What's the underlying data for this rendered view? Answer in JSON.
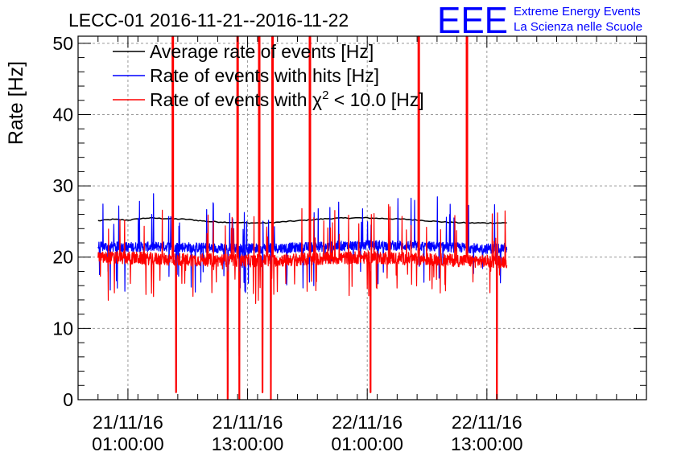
{
  "logo": {
    "mark": "EEE",
    "line1": "Extreme Energy Events",
    "line2": "La Scienza nelle Scuole",
    "color": "#0000ff"
  },
  "chart_data": {
    "type": "line",
    "title": "LECC-01 2016-11-21--2016-11-22",
    "ylabel": "Rate [Hz]",
    "xlabel": "",
    "ylim": [
      0,
      51
    ],
    "yticks": [
      0,
      10,
      20,
      30,
      40,
      50
    ],
    "xlim": [
      "2016-11-20T20:00:00",
      "2016-11-23T05:00:00"
    ],
    "xticks": [
      {
        "at": "2016-11-21T01:00:00",
        "line1": "21/11/16",
        "line2": "01:00:00"
      },
      {
        "at": "2016-11-21T13:00:00",
        "line1": "21/11/16",
        "line2": "13:00:00"
      },
      {
        "at": "2016-11-22T01:00:00",
        "line1": "22/11/16",
        "line2": "01:00:00"
      },
      {
        "at": "2016-11-22T13:00:00",
        "line1": "22/11/16",
        "line2": "13:00:00"
      }
    ],
    "grid": true,
    "legend_position": "top-left",
    "series": [
      {
        "name": "Average rate of events [Hz]",
        "color": "#000000",
        "baseline": [
          [
            "2016-11-20T22:00:00",
            25.1
          ],
          [
            "2016-11-20T23:30:00",
            25.3
          ],
          [
            "2016-11-21T01:00:00",
            25.2
          ],
          [
            "2016-11-21T03:00:00",
            25.5
          ],
          [
            "2016-11-21T05:00:00",
            25.4
          ],
          [
            "2016-11-21T07:00:00",
            25.3
          ],
          [
            "2016-11-21T09:00:00",
            25.0
          ],
          [
            "2016-11-21T11:00:00",
            24.9
          ],
          [
            "2016-11-21T13:00:00",
            24.8
          ],
          [
            "2016-11-21T15:00:00",
            24.8
          ],
          [
            "2016-11-21T17:00:00",
            25.0
          ],
          [
            "2016-11-21T19:00:00",
            25.2
          ],
          [
            "2016-11-21T21:00:00",
            25.4
          ],
          [
            "2016-11-21T23:00:00",
            25.5
          ],
          [
            "2016-11-22T01:00:00",
            25.5
          ],
          [
            "2016-11-22T03:00:00",
            25.4
          ],
          [
            "2016-11-22T05:00:00",
            25.3
          ],
          [
            "2016-11-22T07:00:00",
            25.1
          ],
          [
            "2016-11-22T09:00:00",
            24.9
          ],
          [
            "2016-11-22T11:00:00",
            24.8
          ],
          [
            "2016-11-22T13:00:00",
            24.8
          ],
          [
            "2016-11-22T15:00:00",
            24.8
          ]
        ]
      },
      {
        "name": "Rate of events with hits [Hz]",
        "color": "#0000ff",
        "baseline": [
          [
            "2016-11-20T22:00:00",
            21.5
          ],
          [
            "2016-11-21T01:00:00",
            21.4
          ],
          [
            "2016-11-21T05:00:00",
            21.5
          ],
          [
            "2016-11-21T09:00:00",
            21.3
          ],
          [
            "2016-11-21T13:00:00",
            21.2
          ],
          [
            "2016-11-21T17:00:00",
            21.3
          ],
          [
            "2016-11-21T21:00:00",
            21.5
          ],
          [
            "2016-11-22T01:00:00",
            21.7
          ],
          [
            "2016-11-22T05:00:00",
            21.6
          ],
          [
            "2016-11-22T09:00:00",
            21.4
          ],
          [
            "2016-11-22T13:00:00",
            21.2
          ],
          [
            "2016-11-22T15:00:00",
            21.3
          ]
        ]
      },
      {
        "name": "Rate of events with χ² < 10.0 [Hz]",
        "legend_parts": [
          "Rate of events with ",
          "χ",
          "2",
          " < 10.0 [Hz]"
        ],
        "color": "#ff0000",
        "baseline": [
          [
            "2016-11-20T22:00:00",
            19.9
          ],
          [
            "2016-11-21T01:00:00",
            19.9
          ],
          [
            "2016-11-21T05:00:00",
            19.7
          ],
          [
            "2016-11-21T09:00:00",
            19.6
          ],
          [
            "2016-11-21T13:00:00",
            19.5
          ],
          [
            "2016-11-21T17:00:00",
            19.6
          ],
          [
            "2016-11-21T21:00:00",
            19.8
          ],
          [
            "2016-11-22T01:00:00",
            20.0
          ],
          [
            "2016-11-22T05:00:00",
            19.8
          ],
          [
            "2016-11-22T09:00:00",
            19.6
          ],
          [
            "2016-11-22T13:00:00",
            19.4
          ],
          [
            "2016-11-22T15:00:00",
            19.4
          ]
        ]
      }
    ],
    "spikes_up": [
      {
        "at": "2016-11-21T05:30:00",
        "to": 51
      },
      {
        "at": "2016-11-21T12:00:00",
        "to": 51
      },
      {
        "at": "2016-11-21T14:10:00",
        "to": 51
      },
      {
        "at": "2016-11-21T15:30:00",
        "to": 51
      },
      {
        "at": "2016-11-21T19:15:00",
        "to": 51
      },
      {
        "at": "2016-11-22T06:10:00",
        "to": 51
      },
      {
        "at": "2016-11-22T11:00:00",
        "to": 51
      }
    ],
    "dips_down": [
      {
        "at": "2016-11-21T05:50:00",
        "to": 1
      },
      {
        "at": "2016-11-21T11:00:00",
        "to": 0
      },
      {
        "at": "2016-11-21T12:10:00",
        "to": 0
      },
      {
        "at": "2016-11-21T14:30:00",
        "to": 1
      },
      {
        "at": "2016-11-21T15:20:00",
        "to": 0
      },
      {
        "at": "2016-11-22T01:20:00",
        "to": 1
      },
      {
        "at": "2016-11-22T14:00:00",
        "to": 0
      }
    ]
  }
}
